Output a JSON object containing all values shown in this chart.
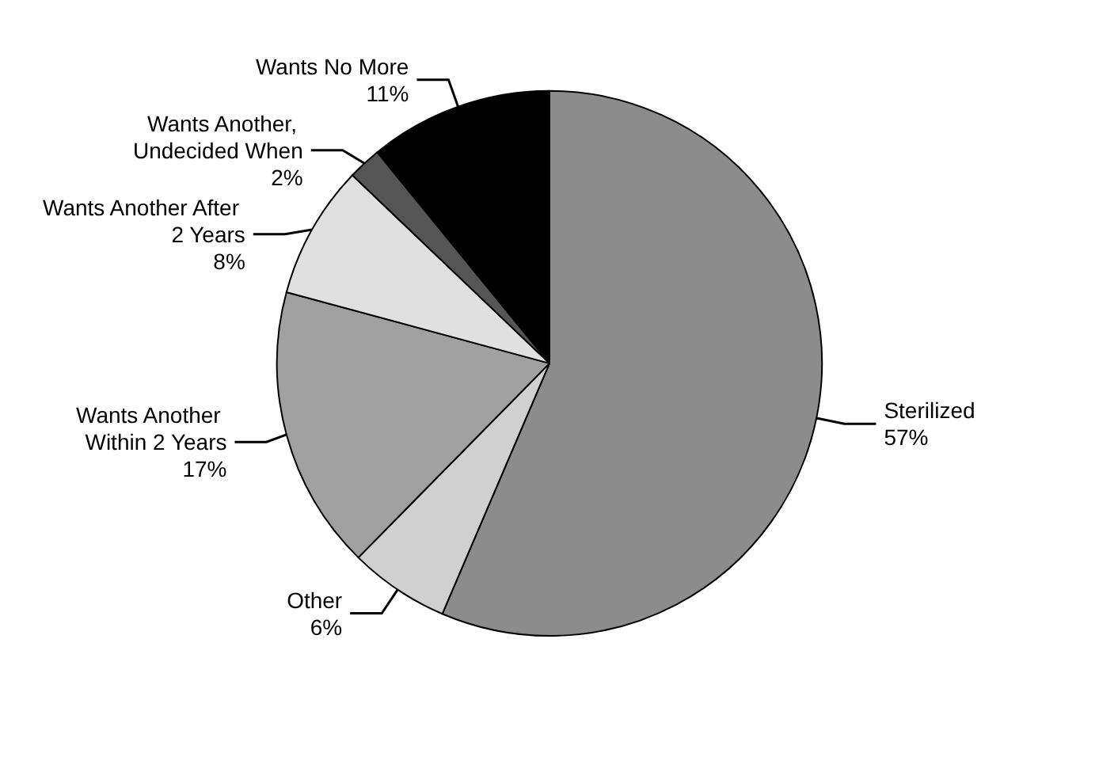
{
  "chart_data": {
    "type": "pie",
    "categories": [
      "Sterilized",
      "Other",
      "Wants Another Within 2 Years",
      "Wants Another After 2 Years",
      "Wants Another, Undecided When",
      "Wants No More"
    ],
    "values": [
      57,
      6,
      17,
      8,
      2,
      11
    ],
    "value_labels": [
      "57%",
      "6%",
      "17%",
      "8%",
      "2%",
      "11%"
    ],
    "colors": [
      "#8c8c8c",
      "#d0d0d0",
      "#a0a0a0",
      "#e0e0e0",
      "#555555",
      "#000000"
    ],
    "legend": false
  }
}
